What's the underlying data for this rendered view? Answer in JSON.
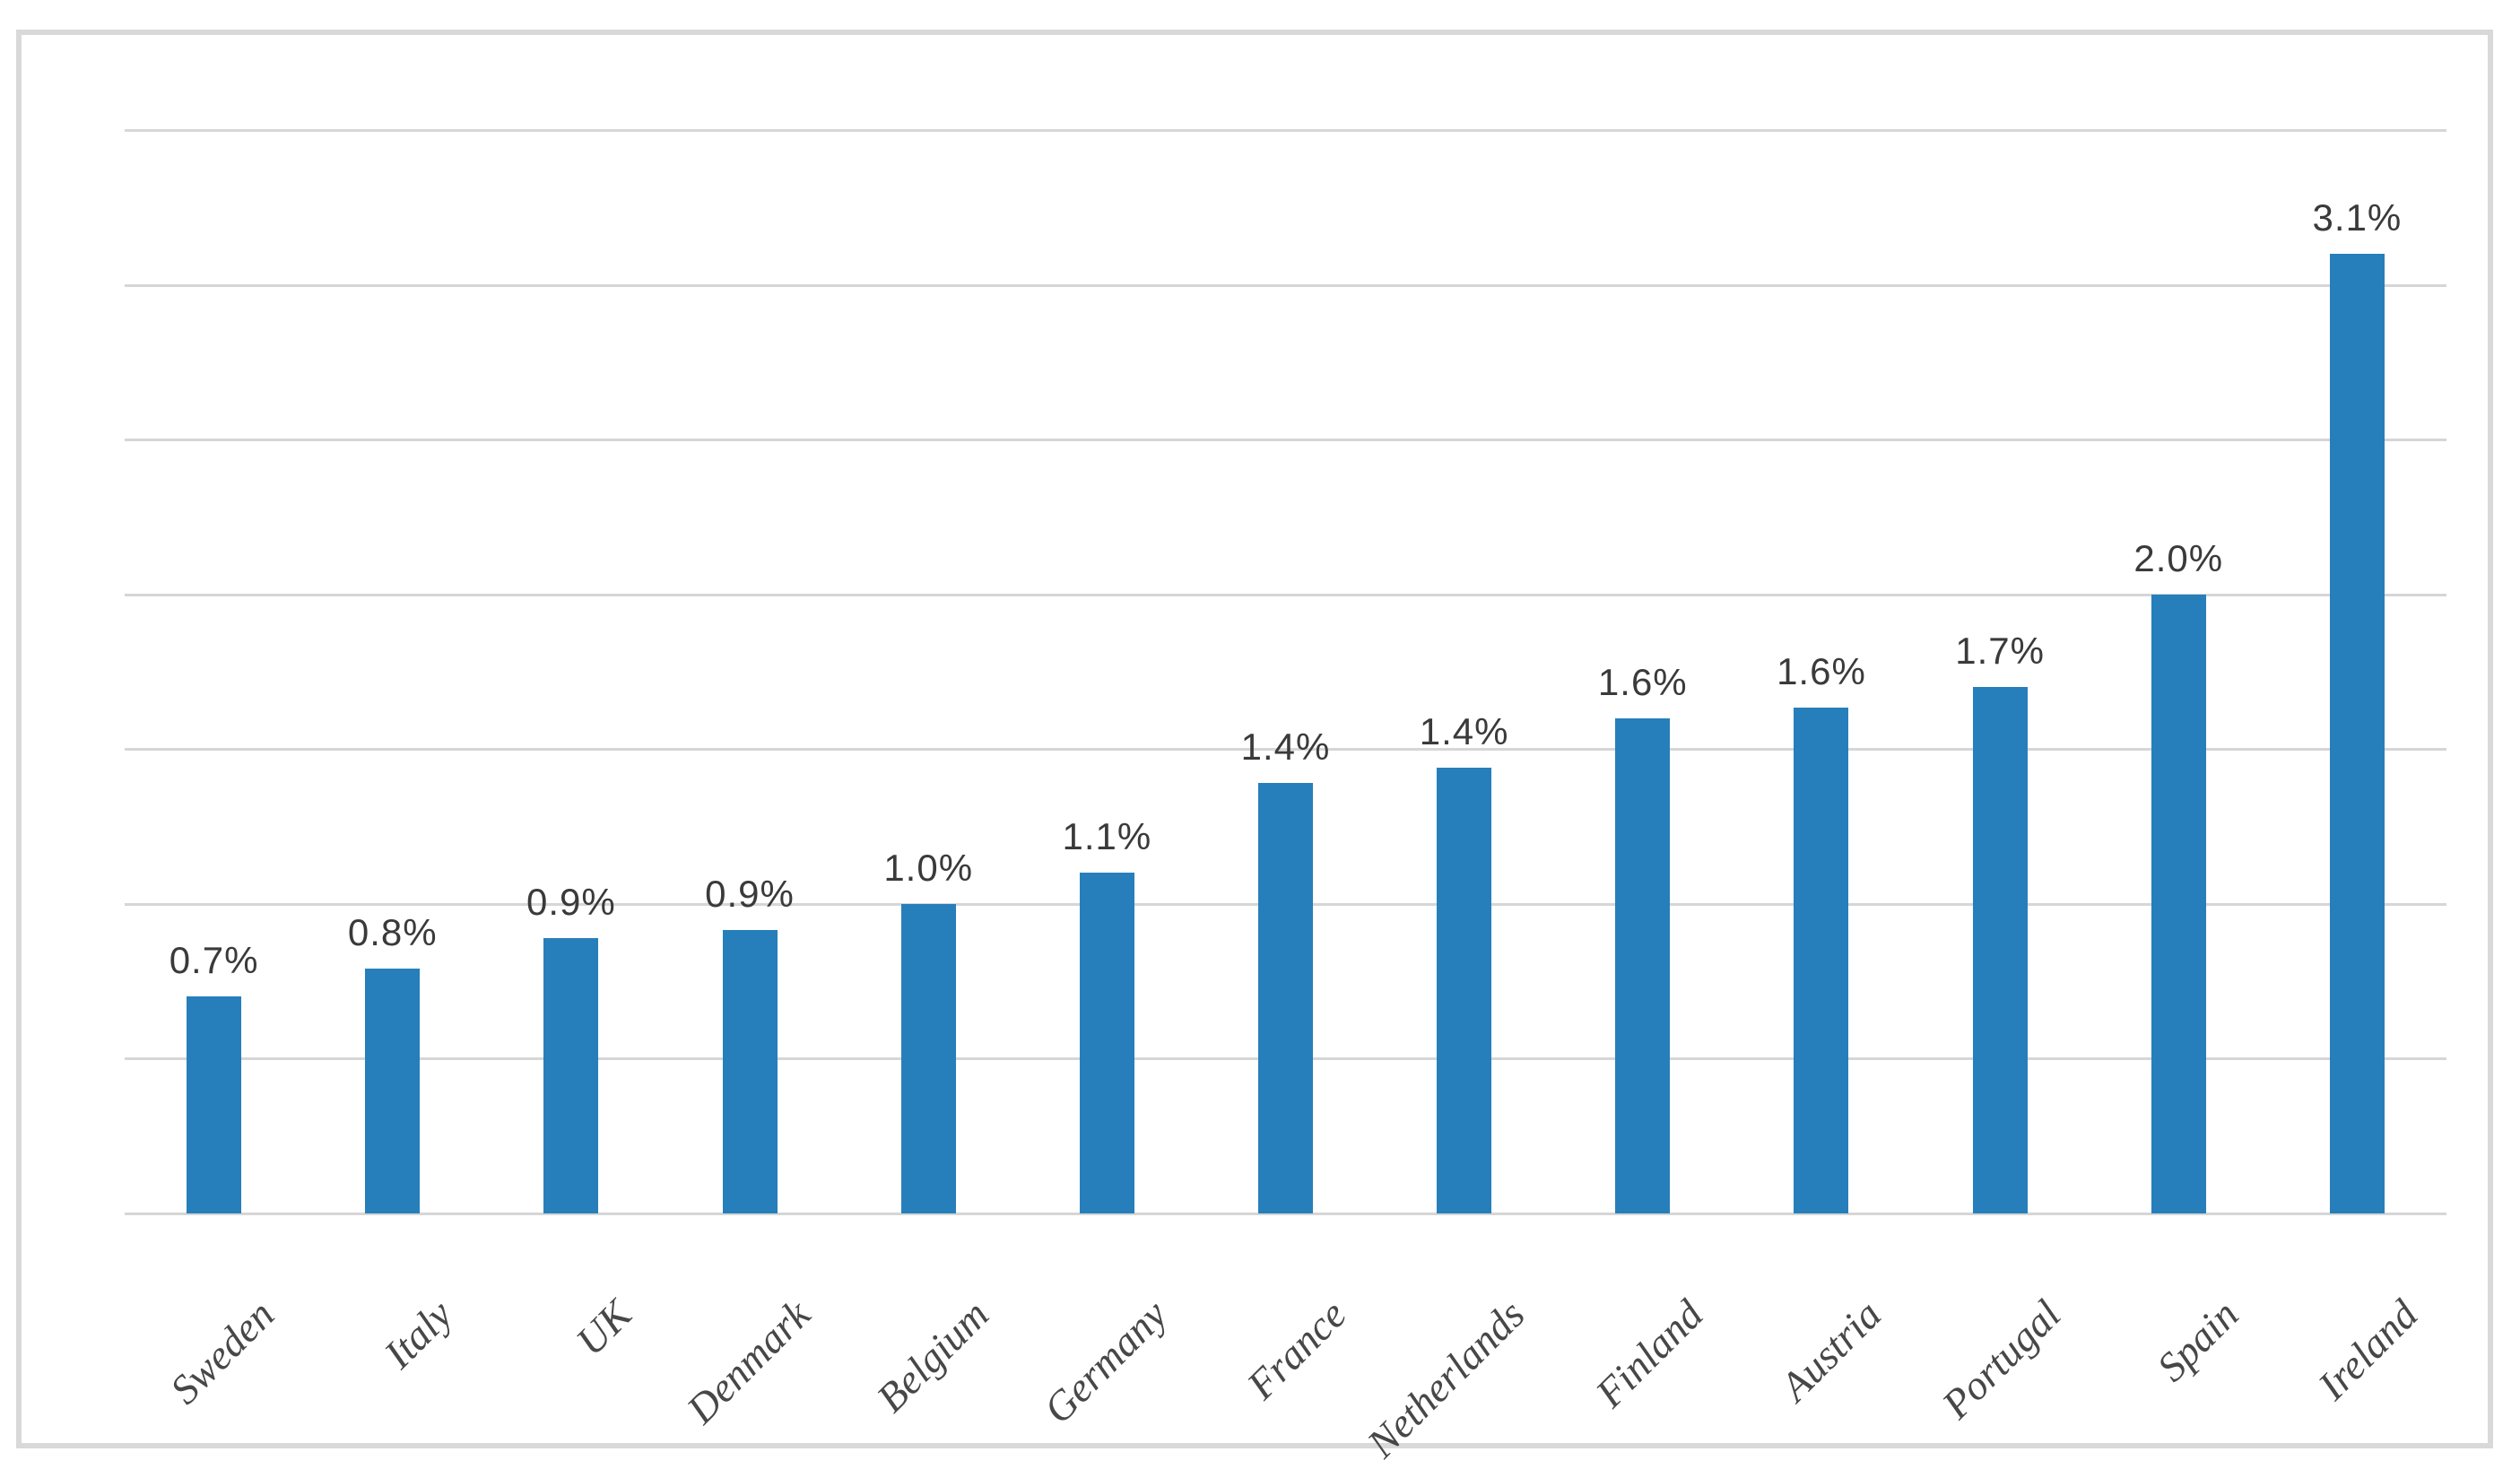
{
  "figure": {
    "title": "",
    "description": "Bar chart of percentages by European country"
  },
  "chart_data": {
    "type": "bar",
    "title": "",
    "xlabel": "",
    "ylabel": "",
    "categories": [
      "Sweden",
      "Italy",
      "UK",
      "Denmark",
      "Belgium",
      "Germany",
      "France",
      "Netherlands",
      "Finland",
      "Austria",
      "Portugal",
      "Spain",
      "Ireland"
    ],
    "series": [
      {
        "name": "",
        "values": [
          0.7,
          0.8,
          0.9,
          0.9,
          1.0,
          1.1,
          1.4,
          1.4,
          1.6,
          1.6,
          1.7,
          2.0,
          3.1
        ]
      }
    ],
    "data_labels": [
      "0.7%",
      "0.8%",
      "0.9%",
      "0.9%",
      "1.0%",
      "1.1%",
      "1.4%",
      "1.4%",
      "1.6%",
      "1.6%",
      "1.7%",
      "2.0%",
      "3.1%"
    ],
    "bar_heights_est": [
      0.7,
      0.79,
      0.89,
      0.915,
      1.0,
      1.1,
      1.39,
      1.44,
      1.6,
      1.635,
      1.7,
      2.0,
      3.1
    ],
    "ylim": [
      0,
      3.5
    ],
    "gridline_step": 0.5,
    "grid": "horizontal",
    "legend": "none",
    "bar_color": "#267fba",
    "gridline_color": "#d6d6d6",
    "data_label_color": "#3a3a3a",
    "category_label_color": "#474747",
    "frame_border_color": "#d9d9d9"
  }
}
